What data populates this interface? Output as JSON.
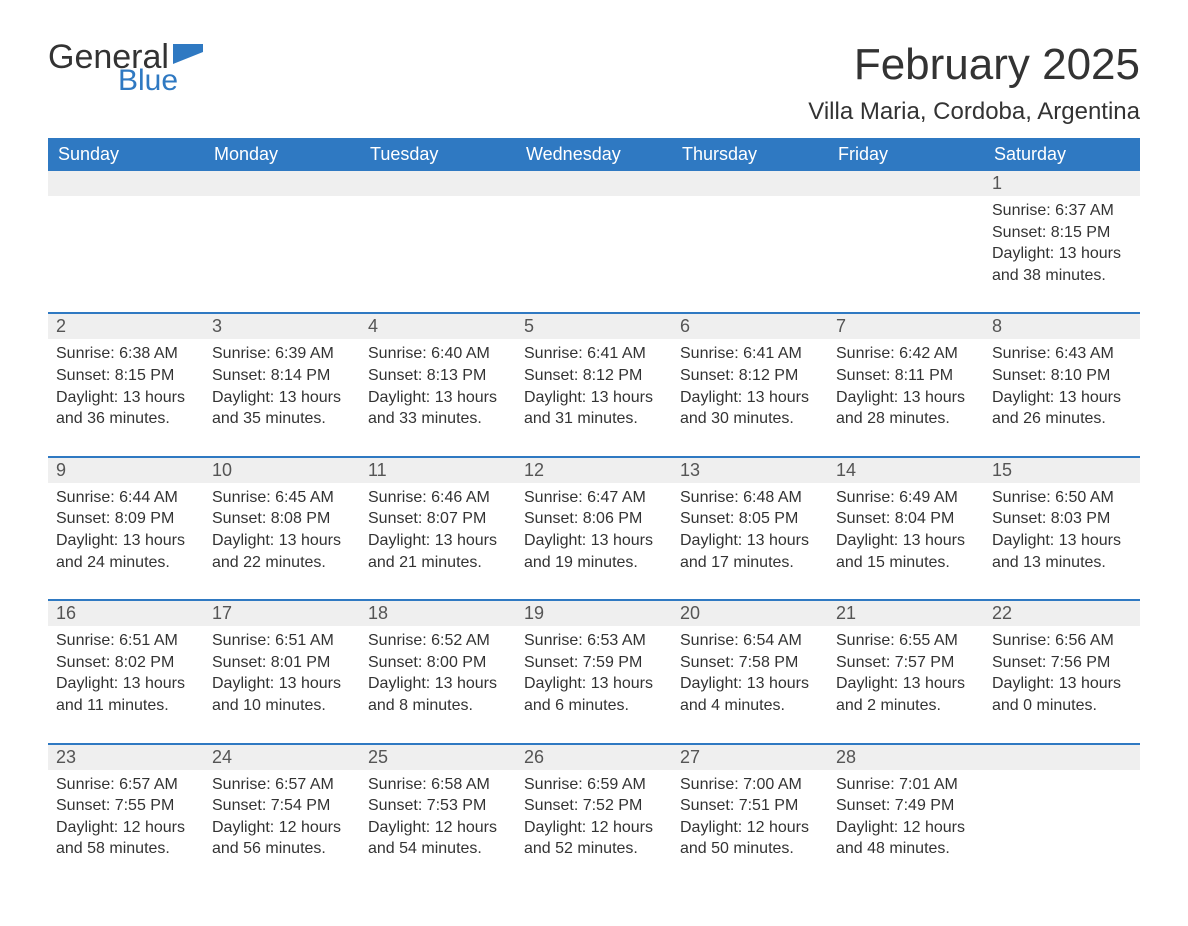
{
  "logo": {
    "text1": "General",
    "text2": "Blue",
    "flag_color": "#2f79c2"
  },
  "header": {
    "month_title": "February 2025",
    "location": "Villa Maria, Cordoba, Argentina"
  },
  "colors": {
    "header_bg": "#2f79c2",
    "header_text": "#ffffff",
    "daynum_bg": "#efefef",
    "text": "#333333",
    "rule": "#2f79c2"
  },
  "weekdays": [
    "Sunday",
    "Monday",
    "Tuesday",
    "Wednesday",
    "Thursday",
    "Friday",
    "Saturday"
  ],
  "weeks": [
    [
      null,
      null,
      null,
      null,
      null,
      null,
      {
        "n": "1",
        "sunrise": "Sunrise: 6:37 AM",
        "sunset": "Sunset: 8:15 PM",
        "day1": "Daylight: 13 hours",
        "day2": "and 38 minutes."
      }
    ],
    [
      {
        "n": "2",
        "sunrise": "Sunrise: 6:38 AM",
        "sunset": "Sunset: 8:15 PM",
        "day1": "Daylight: 13 hours",
        "day2": "and 36 minutes."
      },
      {
        "n": "3",
        "sunrise": "Sunrise: 6:39 AM",
        "sunset": "Sunset: 8:14 PM",
        "day1": "Daylight: 13 hours",
        "day2": "and 35 minutes."
      },
      {
        "n": "4",
        "sunrise": "Sunrise: 6:40 AM",
        "sunset": "Sunset: 8:13 PM",
        "day1": "Daylight: 13 hours",
        "day2": "and 33 minutes."
      },
      {
        "n": "5",
        "sunrise": "Sunrise: 6:41 AM",
        "sunset": "Sunset: 8:12 PM",
        "day1": "Daylight: 13 hours",
        "day2": "and 31 minutes."
      },
      {
        "n": "6",
        "sunrise": "Sunrise: 6:41 AM",
        "sunset": "Sunset: 8:12 PM",
        "day1": "Daylight: 13 hours",
        "day2": "and 30 minutes."
      },
      {
        "n": "7",
        "sunrise": "Sunrise: 6:42 AM",
        "sunset": "Sunset: 8:11 PM",
        "day1": "Daylight: 13 hours",
        "day2": "and 28 minutes."
      },
      {
        "n": "8",
        "sunrise": "Sunrise: 6:43 AM",
        "sunset": "Sunset: 8:10 PM",
        "day1": "Daylight: 13 hours",
        "day2": "and 26 minutes."
      }
    ],
    [
      {
        "n": "9",
        "sunrise": "Sunrise: 6:44 AM",
        "sunset": "Sunset: 8:09 PM",
        "day1": "Daylight: 13 hours",
        "day2": "and 24 minutes."
      },
      {
        "n": "10",
        "sunrise": "Sunrise: 6:45 AM",
        "sunset": "Sunset: 8:08 PM",
        "day1": "Daylight: 13 hours",
        "day2": "and 22 minutes."
      },
      {
        "n": "11",
        "sunrise": "Sunrise: 6:46 AM",
        "sunset": "Sunset: 8:07 PM",
        "day1": "Daylight: 13 hours",
        "day2": "and 21 minutes."
      },
      {
        "n": "12",
        "sunrise": "Sunrise: 6:47 AM",
        "sunset": "Sunset: 8:06 PM",
        "day1": "Daylight: 13 hours",
        "day2": "and 19 minutes."
      },
      {
        "n": "13",
        "sunrise": "Sunrise: 6:48 AM",
        "sunset": "Sunset: 8:05 PM",
        "day1": "Daylight: 13 hours",
        "day2": "and 17 minutes."
      },
      {
        "n": "14",
        "sunrise": "Sunrise: 6:49 AM",
        "sunset": "Sunset: 8:04 PM",
        "day1": "Daylight: 13 hours",
        "day2": "and 15 minutes."
      },
      {
        "n": "15",
        "sunrise": "Sunrise: 6:50 AM",
        "sunset": "Sunset: 8:03 PM",
        "day1": "Daylight: 13 hours",
        "day2": "and 13 minutes."
      }
    ],
    [
      {
        "n": "16",
        "sunrise": "Sunrise: 6:51 AM",
        "sunset": "Sunset: 8:02 PM",
        "day1": "Daylight: 13 hours",
        "day2": "and 11 minutes."
      },
      {
        "n": "17",
        "sunrise": "Sunrise: 6:51 AM",
        "sunset": "Sunset: 8:01 PM",
        "day1": "Daylight: 13 hours",
        "day2": "and 10 minutes."
      },
      {
        "n": "18",
        "sunrise": "Sunrise: 6:52 AM",
        "sunset": "Sunset: 8:00 PM",
        "day1": "Daylight: 13 hours",
        "day2": "and 8 minutes."
      },
      {
        "n": "19",
        "sunrise": "Sunrise: 6:53 AM",
        "sunset": "Sunset: 7:59 PM",
        "day1": "Daylight: 13 hours",
        "day2": "and 6 minutes."
      },
      {
        "n": "20",
        "sunrise": "Sunrise: 6:54 AM",
        "sunset": "Sunset: 7:58 PM",
        "day1": "Daylight: 13 hours",
        "day2": "and 4 minutes."
      },
      {
        "n": "21",
        "sunrise": "Sunrise: 6:55 AM",
        "sunset": "Sunset: 7:57 PM",
        "day1": "Daylight: 13 hours",
        "day2": "and 2 minutes."
      },
      {
        "n": "22",
        "sunrise": "Sunrise: 6:56 AM",
        "sunset": "Sunset: 7:56 PM",
        "day1": "Daylight: 13 hours",
        "day2": "and 0 minutes."
      }
    ],
    [
      {
        "n": "23",
        "sunrise": "Sunrise: 6:57 AM",
        "sunset": "Sunset: 7:55 PM",
        "day1": "Daylight: 12 hours",
        "day2": "and 58 minutes."
      },
      {
        "n": "24",
        "sunrise": "Sunrise: 6:57 AM",
        "sunset": "Sunset: 7:54 PM",
        "day1": "Daylight: 12 hours",
        "day2": "and 56 minutes."
      },
      {
        "n": "25",
        "sunrise": "Sunrise: 6:58 AM",
        "sunset": "Sunset: 7:53 PM",
        "day1": "Daylight: 12 hours",
        "day2": "and 54 minutes."
      },
      {
        "n": "26",
        "sunrise": "Sunrise: 6:59 AM",
        "sunset": "Sunset: 7:52 PM",
        "day1": "Daylight: 12 hours",
        "day2": "and 52 minutes."
      },
      {
        "n": "27",
        "sunrise": "Sunrise: 7:00 AM",
        "sunset": "Sunset: 7:51 PM",
        "day1": "Daylight: 12 hours",
        "day2": "and 50 minutes."
      },
      {
        "n": "28",
        "sunrise": "Sunrise: 7:01 AM",
        "sunset": "Sunset: 7:49 PM",
        "day1": "Daylight: 12 hours",
        "day2": "and 48 minutes."
      },
      null
    ]
  ]
}
